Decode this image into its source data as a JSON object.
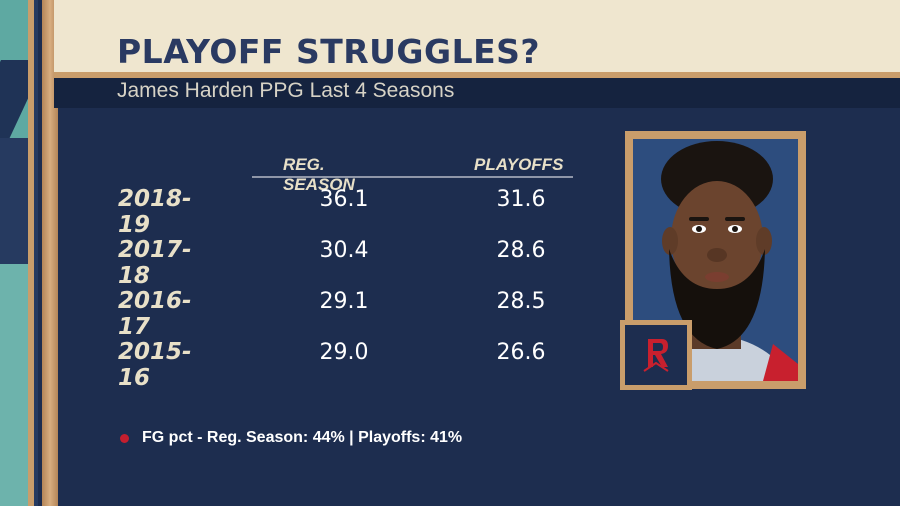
{
  "header": {
    "title": "PLAYOFF STRUGGLES?",
    "subtitle": "James Harden PPG Last 4 Seasons"
  },
  "table": {
    "columns": [
      "REG. SEASON",
      "PLAYOFFS"
    ],
    "rows": [
      {
        "season": "2018-19",
        "reg": "36.1",
        "playoffs": "31.6"
      },
      {
        "season": "2017-18",
        "reg": "30.4",
        "playoffs": "28.6"
      },
      {
        "season": "2016-17",
        "reg": "29.1",
        "playoffs": "28.5"
      },
      {
        "season": "2015-16",
        "reg": "29.0",
        "playoffs": "26.6"
      }
    ]
  },
  "footnote": "FG pct - Reg. Season: 44% | Playoffs: 41%",
  "colors": {
    "background": "#1d2d4f",
    "banner": "#efe6cf",
    "title": "#2a3a62",
    "wood": "#c99d6b",
    "bullet": "#c41e2e"
  },
  "icons": {
    "team_logo": "rockets-logo-icon",
    "bullet": "red-dot-icon"
  }
}
